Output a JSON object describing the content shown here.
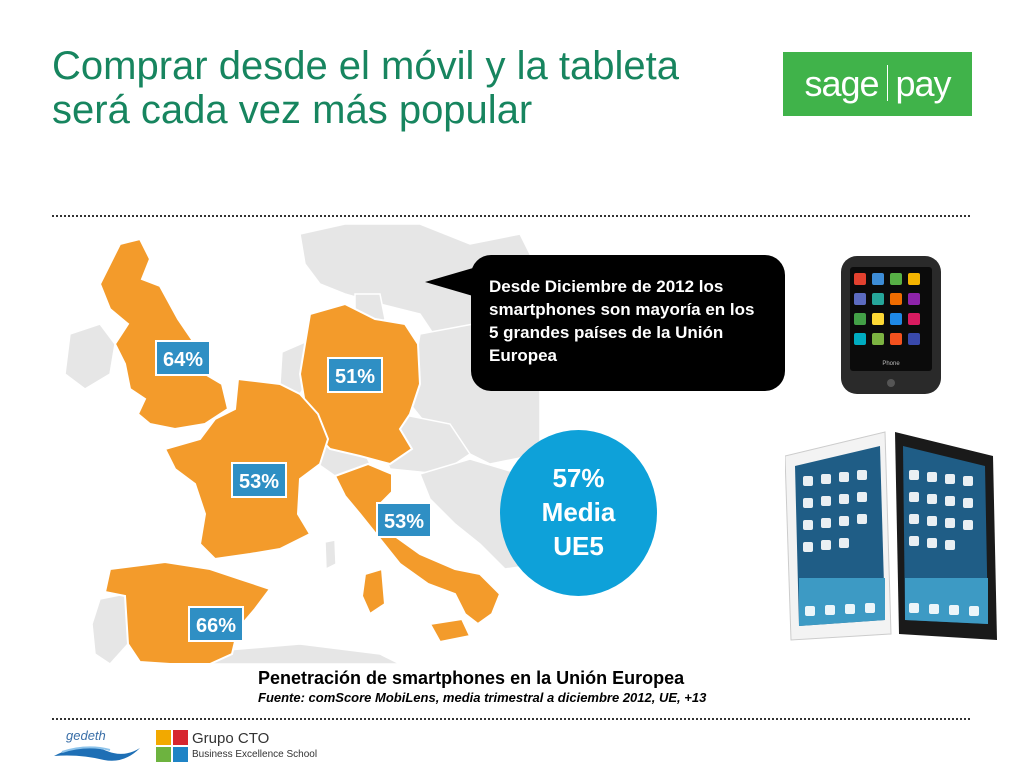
{
  "title": {
    "line1": "Comprar desde el móvil y la tableta",
    "line2": "será cada vez más popular"
  },
  "logo": {
    "left": "sage",
    "right": "pay"
  },
  "map": {
    "labels": [
      {
        "country": "UK",
        "value": "64%"
      },
      {
        "country": "Germany",
        "value": "51%"
      },
      {
        "country": "France",
        "value": "53%"
      },
      {
        "country": "Italy",
        "value": "53%"
      },
      {
        "country": "Spain",
        "value": "66%"
      }
    ],
    "highlight_color": "#f39b2b",
    "label_color": "#2f8fc4"
  },
  "callout": {
    "text": "Desde Diciembre de 2012 los smartphones son mayoría en los 5 grandes países de la Unión Europea"
  },
  "summary": {
    "line1": "57%",
    "line2": "Media",
    "line3": "UE5"
  },
  "phone": {
    "bottom_label": "Phone"
  },
  "caption": {
    "title": "Penetración de smartphones en la Unión Europea",
    "source": "Fuente: comScore MobiLens, media trimestral a diciembre 2012, UE, +13"
  },
  "footer": {
    "logo1": "gedeth",
    "logo2_line1": "Grupo CTO",
    "logo2_line2": "Business Excellence School"
  }
}
